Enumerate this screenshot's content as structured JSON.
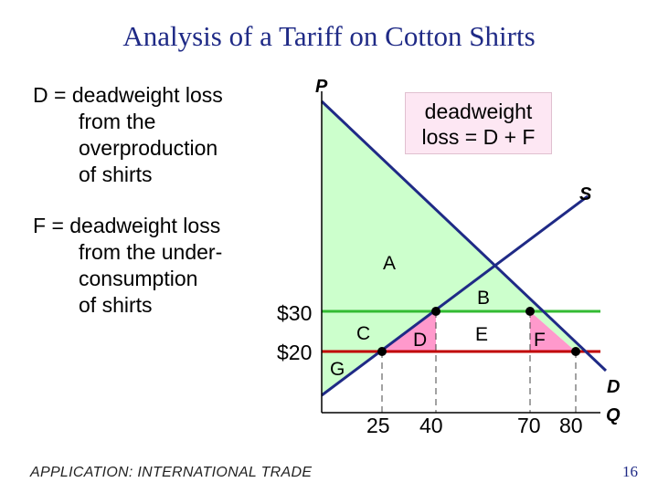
{
  "title": "Analysis of a Tariff on Cotton Shirts",
  "notes": {
    "d": [
      "D = deadweight loss",
      "from the",
      "overproduction",
      "of shirts"
    ],
    "f": [
      "F = deadweight loss",
      "from the under-",
      "consumption",
      "of shirts"
    ]
  },
  "callout": [
    "deadweight",
    "loss = D + F"
  ],
  "chart_data": {
    "type": "line",
    "axes": {
      "y_label": "P",
      "x_label": "Q"
    },
    "prices": [
      {
        "label": "$30",
        "value": 30,
        "color": "#33bb33"
      },
      {
        "label": "$20",
        "value": 20,
        "color": "#c00000"
      }
    ],
    "quantities": [
      {
        "label": "25",
        "value": 25
      },
      {
        "label": "40",
        "value": 40
      },
      {
        "label": "70",
        "value": 70
      },
      {
        "label": "80",
        "value": 80
      }
    ],
    "curves": [
      {
        "name": "D",
        "color": "#1f2a86"
      },
      {
        "name": "S",
        "color": "#1f2a86"
      }
    ],
    "regions": [
      {
        "name": "A",
        "color": "#ccffcc"
      },
      {
        "name": "B",
        "color": "#ccffcc"
      },
      {
        "name": "C",
        "color": "#ccffcc"
      },
      {
        "name": "D",
        "color": "#ff99cc"
      },
      {
        "name": "E",
        "color": "#ffffff"
      },
      {
        "name": "F",
        "color": "#ff99cc"
      },
      {
        "name": "G",
        "color": "#ccffcc"
      }
    ]
  },
  "footer": "APPLICATION:  INTERNATIONAL TRADE",
  "page_number": "16"
}
